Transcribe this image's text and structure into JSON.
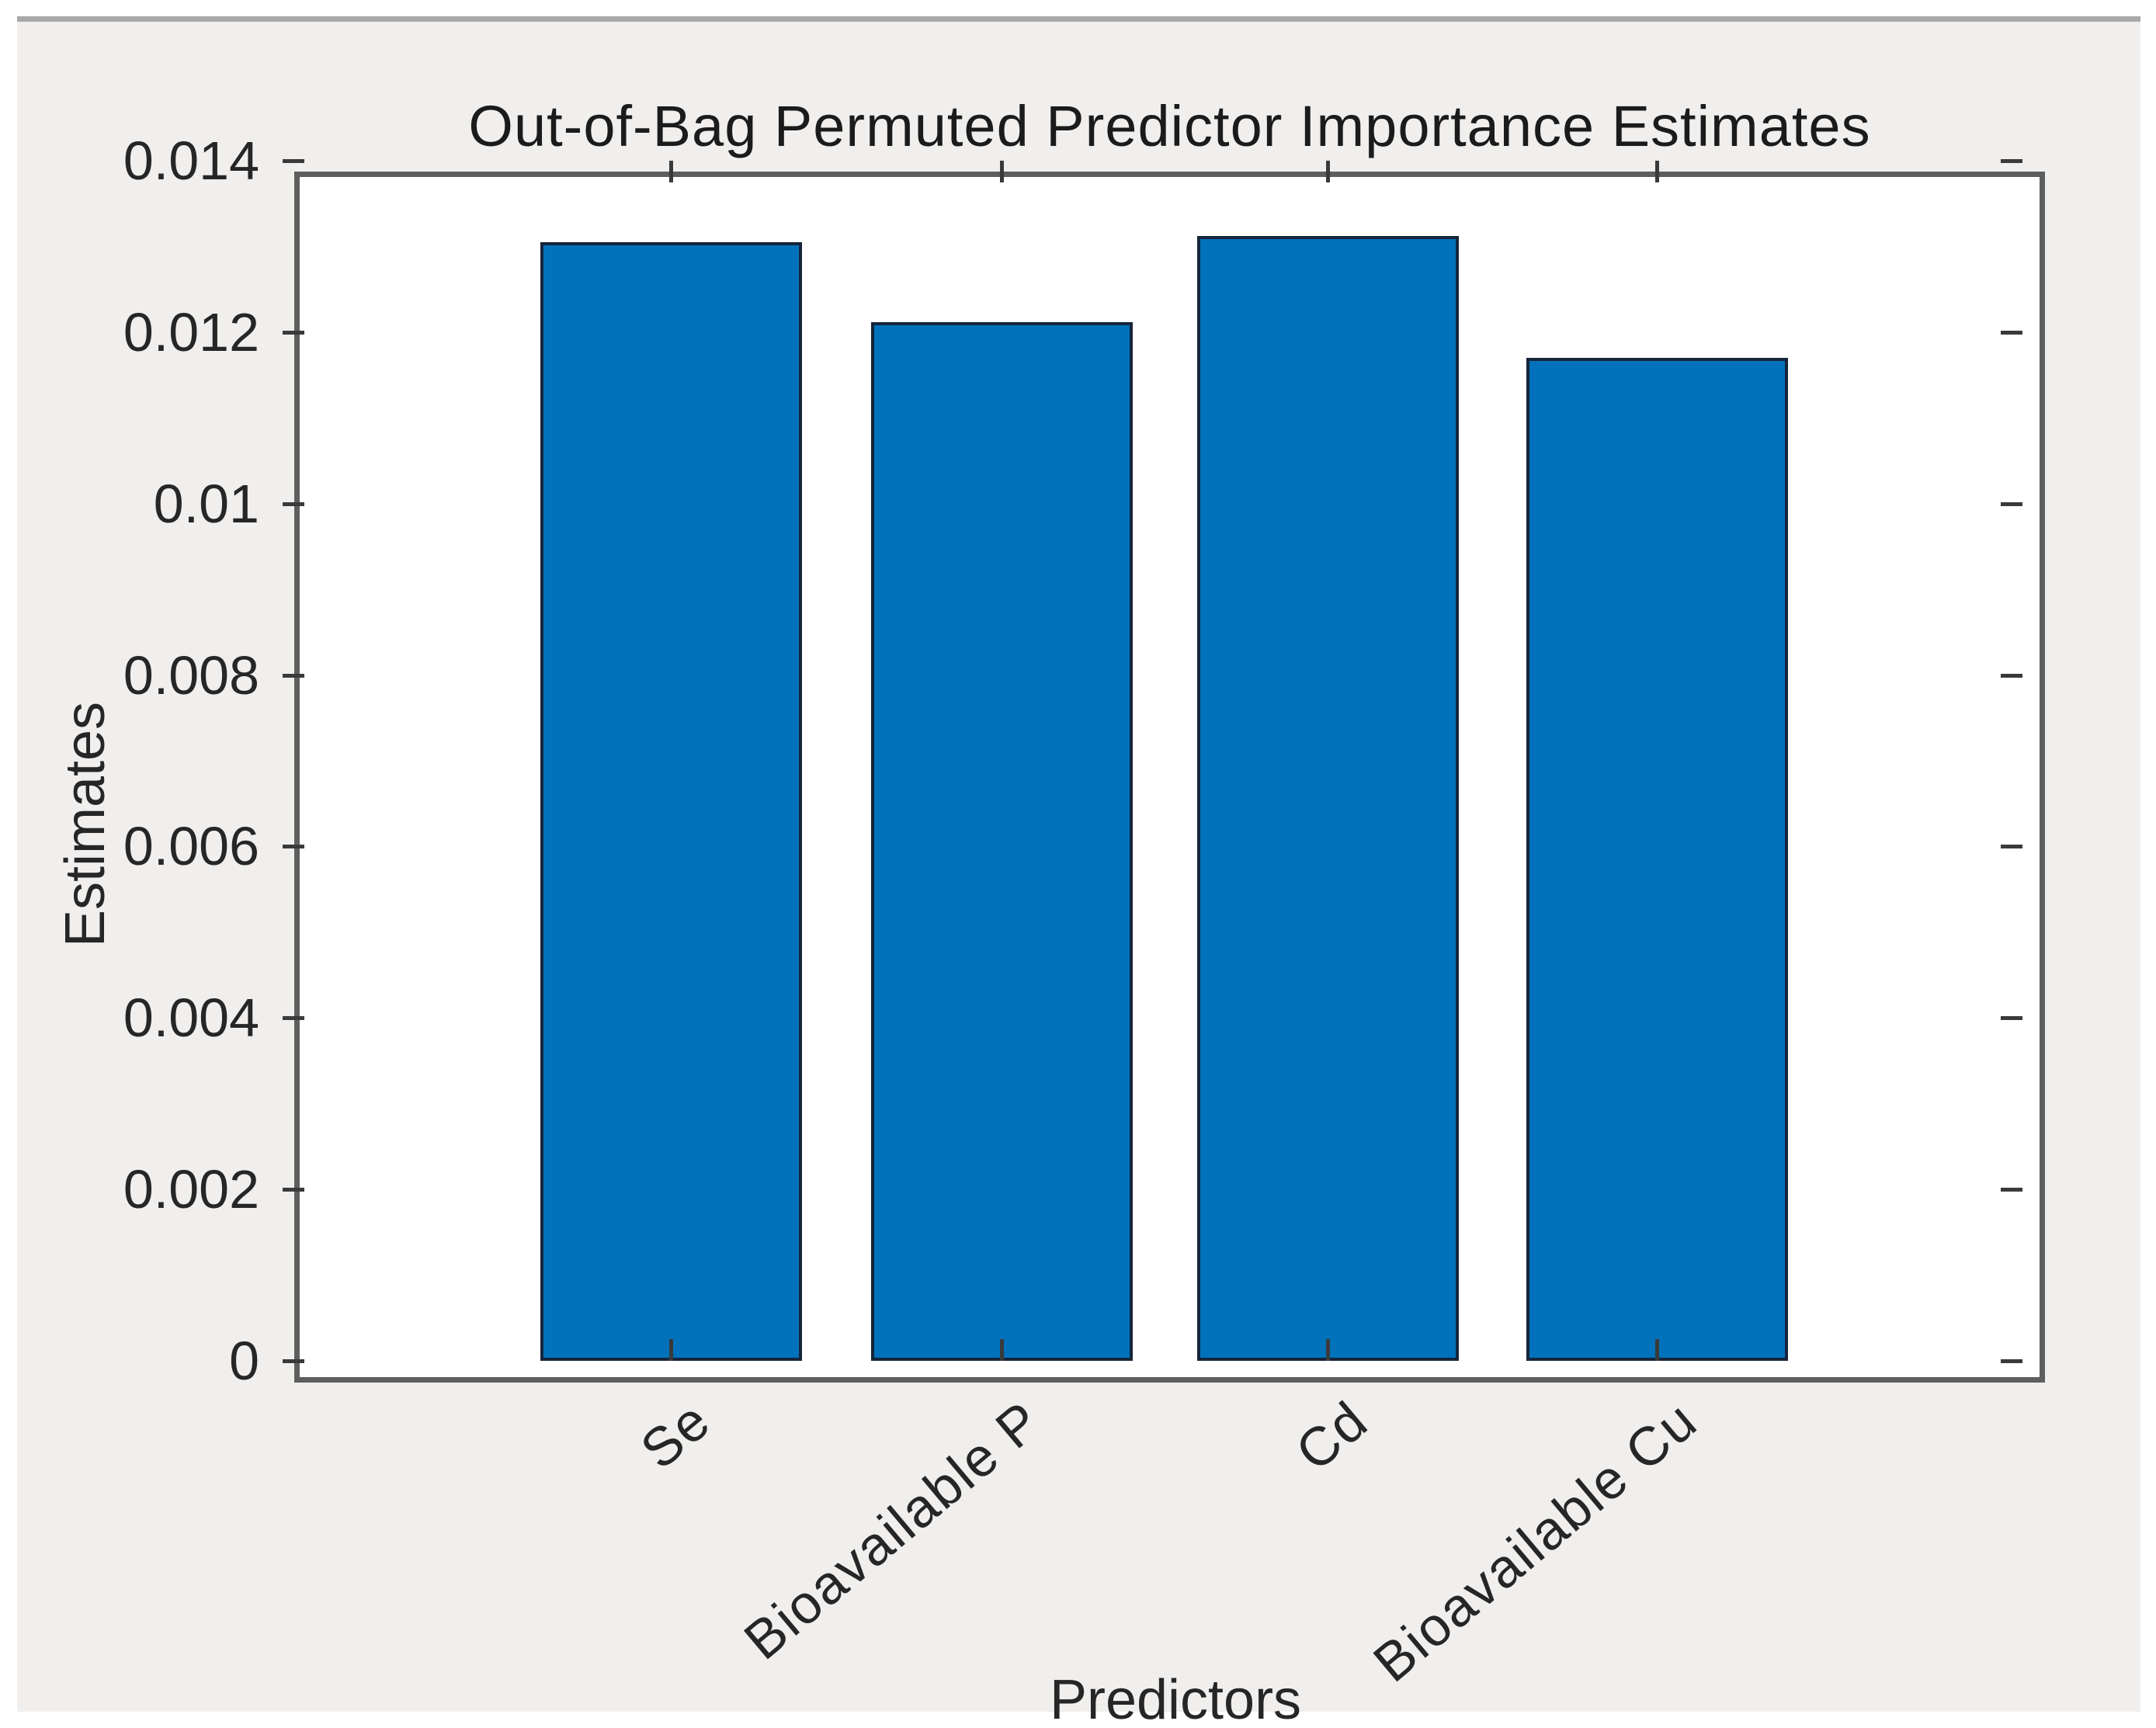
{
  "figure": {
    "background_color": "#F0EFEE",
    "plot_background_color": "#FFFFFF",
    "axis_border_color": "#5E5E5E",
    "tick_color": "#3A3A3A",
    "text_color": "#262626"
  },
  "chart_data": {
    "type": "bar",
    "title": "Out-of-Bag Permuted Predictor Importance Estimates",
    "xlabel": "Predictors",
    "ylabel": "Estimates",
    "categories": [
      "Se",
      "Bioavailable P",
      "Cd",
      "Bioavailable Cu"
    ],
    "values": [
      0.01305,
      0.01212,
      0.01312,
      0.0117
    ],
    "ylim": [
      0,
      0.014
    ],
    "yticks": [
      0,
      0.002,
      0.004,
      0.006,
      0.008,
      0.01,
      0.012,
      0.014
    ],
    "ytick_labels": [
      "0",
      "0.002",
      "0.004",
      "0.006",
      "0.008",
      "0.01",
      "0.012",
      "0.014"
    ],
    "grid": false,
    "legend": null,
    "tick_direction": "in",
    "box": true,
    "x_tick_label_rotation_deg": 40,
    "bar_fill_color": "#0072BC",
    "bar_edge_color": "#16253B",
    "bar_width_fraction": 0.8
  }
}
